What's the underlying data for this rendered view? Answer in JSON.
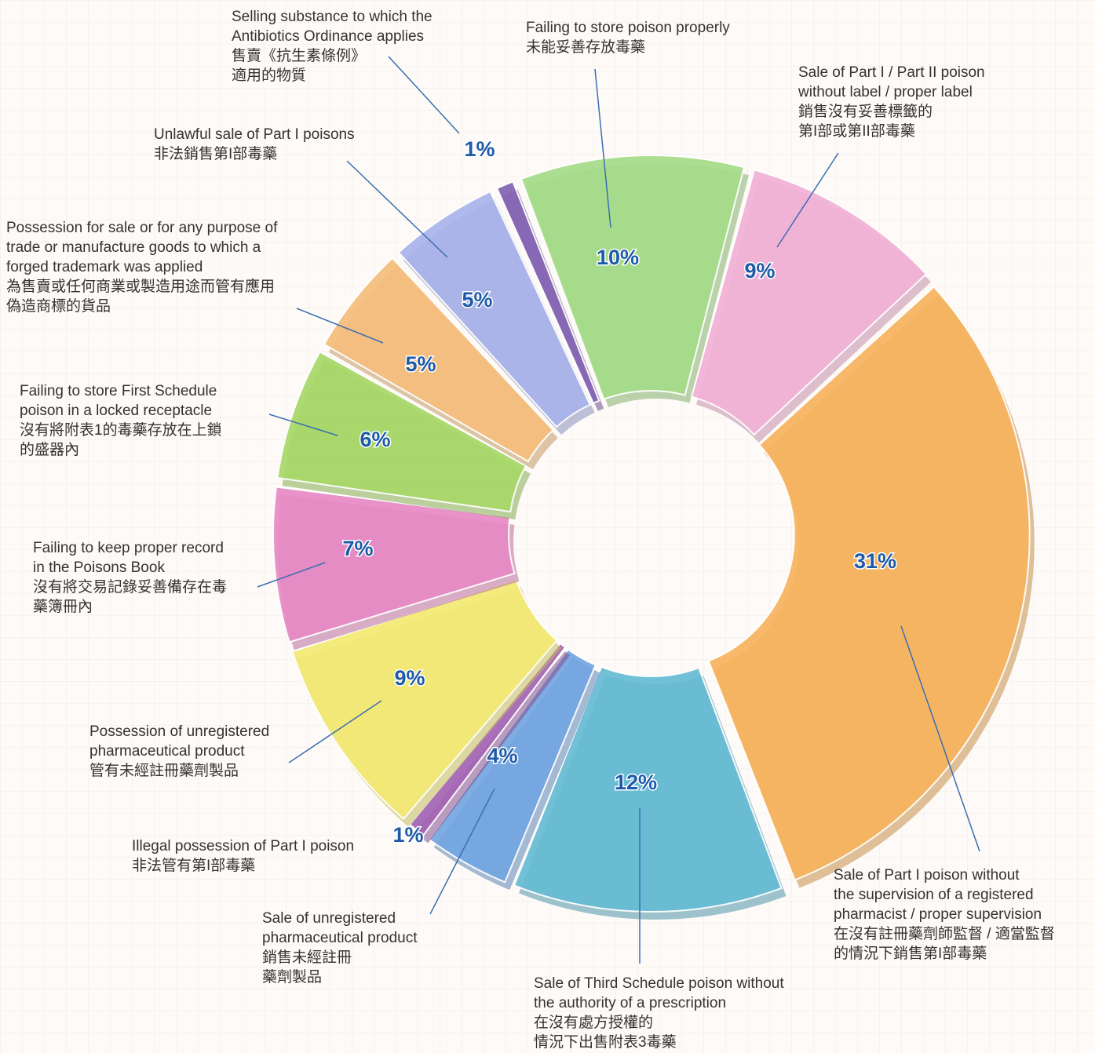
{
  "chart_data": {
    "type": "donut",
    "categories": [
      [
        "Failing to store poison properly",
        "未能妥善存放毒藥"
      ],
      [
        "Sale of Part I / Part II poison",
        "without label / proper label",
        "銷售沒有妥善標籤的",
        "第I部或第II部毒藥"
      ],
      [
        "Sale of Part I poison without",
        "the supervision of a registered",
        "pharmacist / proper supervision",
        "在沒有註冊藥劑師監督 / 適當監督",
        "的情況下銷售第I部毒藥"
      ],
      [
        "Sale of Third Schedule poison without",
        "the authority of a prescription",
        "在沒有處方授權的",
        "情況下出售附表3毒藥"
      ],
      [
        "Sale of unregistered",
        "pharmaceutical product",
        "銷售未經註冊",
        "藥劑製品"
      ],
      [
        "Illegal possession of Part I poison",
        "非法管有第I部毒藥"
      ],
      [
        "Possession of unregistered",
        "pharmaceutical product",
        "管有未經註冊藥劑製品"
      ],
      [
        "Failing to keep proper record",
        "in the Poisons Book",
        "沒有將交易記錄妥善備存在毒",
        "藥簿冊內"
      ],
      [
        "Failing to store First Schedule",
        "poison in a locked receptacle",
        "沒有將附表1的毒藥存放在上鎖",
        "的盛器內"
      ],
      [
        "Possession for sale or for any purpose of",
        "trade or manufacture goods to which a",
        "forged trademark was applied",
        "為售賣或任何商業或製造用途而管有應用",
        "偽造商標的貨品"
      ],
      [
        "Unlawful sale of Part I poisons",
        "非法銷售第I部毒藥"
      ],
      [
        "Selling substance to which the",
        "Antibiotics Ordinance applies",
        "售賣《抗生素條例》",
        "適用的物質"
      ]
    ],
    "values": [
      10,
      9,
      31,
      12,
      4,
      1,
      9,
      7,
      6,
      5,
      5,
      1
    ],
    "value_labels": [
      "10%",
      "9%",
      "31%",
      "12%",
      "4%",
      "1%",
      "9%",
      "7%",
      "6%",
      "5%",
      "5%",
      "1%"
    ],
    "colors": [
      "#a6dc8a",
      "#f2b2d6",
      "#f7b45e",
      "#66bcd4",
      "#74a6e2",
      "#a464b4",
      "#f4ea74",
      "#e88ac6",
      "#a8d868",
      "#f5be7c",
      "#aab4ea",
      "#8464b4"
    ]
  }
}
